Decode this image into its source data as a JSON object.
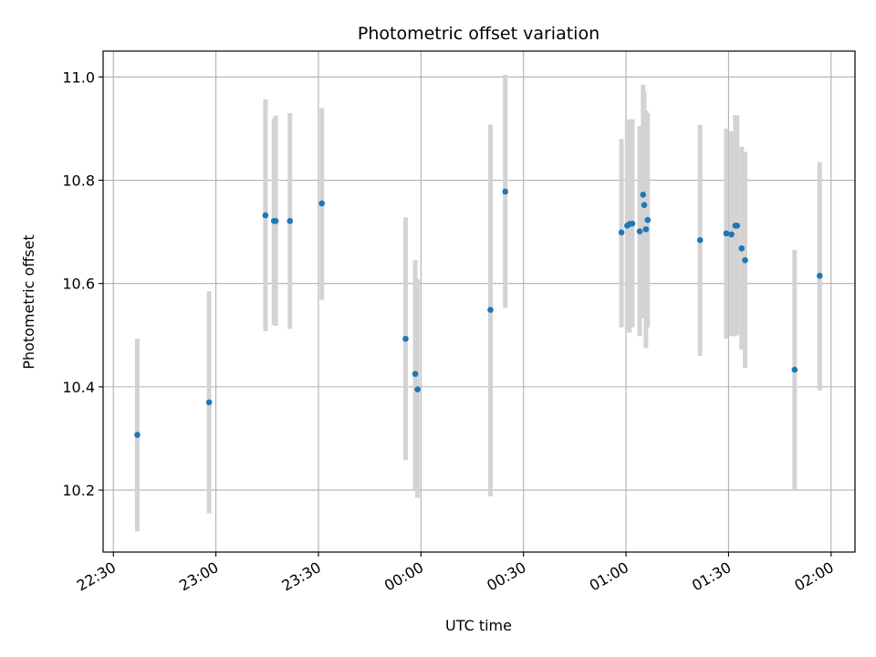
{
  "chart_data": {
    "type": "scatter",
    "title": "Photometric offset variation",
    "xlabel": "UTC time",
    "ylabel": "Photometric offset",
    "x_is_time": true,
    "xlim": [
      "22:27",
      "02:07"
    ],
    "ylim": [
      10.08,
      11.05
    ],
    "x_ticks": [
      "22:30",
      "23:00",
      "23:30",
      "00:00",
      "00:30",
      "01:00",
      "01:30",
      "02:00"
    ],
    "y_ticks": [
      10.2,
      10.4,
      10.6,
      10.8,
      11.0
    ],
    "y_tick_labels": [
      "10.2",
      "10.4",
      "10.6",
      "10.8",
      "11.0"
    ],
    "grid": true,
    "point_color": "#1f77b4",
    "errorbar_color": "#d3d3d3",
    "series": [
      {
        "points": [
          {
            "x": "22:37:00",
            "y": 10.307,
            "ylow": 10.12,
            "yhigh": 10.493
          },
          {
            "x": "22:58:00",
            "y": 10.37,
            "ylow": 10.155,
            "yhigh": 10.585
          },
          {
            "x": "23:14:30",
            "y": 10.732,
            "ylow": 10.508,
            "yhigh": 10.957
          },
          {
            "x": "23:17:00",
            "y": 10.721,
            "ylow": 10.52,
            "yhigh": 10.92
          },
          {
            "x": "23:17:30",
            "y": 10.721,
            "ylow": 10.518,
            "yhigh": 10.925
          },
          {
            "x": "23:21:40",
            "y": 10.721,
            "ylow": 10.512,
            "yhigh": 10.93
          },
          {
            "x": "23:31:00",
            "y": 10.755,
            "ylow": 10.568,
            "yhigh": 10.94
          },
          {
            "x": "23:55:30",
            "y": 10.493,
            "ylow": 10.258,
            "yhigh": 10.728
          },
          {
            "x": "23:58:20",
            "y": 10.425,
            "ylow": 10.2,
            "yhigh": 10.645
          },
          {
            "x": "23:59:00",
            "y": 10.395,
            "ylow": 10.185,
            "yhigh": 10.608
          },
          {
            "x": "00:20:20",
            "y": 10.549,
            "ylow": 10.188,
            "yhigh": 10.908
          },
          {
            "x": "00:24:40",
            "y": 10.778,
            "ylow": 10.553,
            "yhigh": 11.004
          },
          {
            "x": "00:58:40",
            "y": 10.699,
            "ylow": 10.515,
            "yhigh": 10.88
          },
          {
            "x": "01:00:20",
            "y": 10.712,
            "ylow": 10.51,
            "yhigh": 10.915
          },
          {
            "x": "01:01:00",
            "y": 10.715,
            "ylow": 10.505,
            "yhigh": 10.918
          },
          {
            "x": "01:01:50",
            "y": 10.716,
            "ylow": 10.515,
            "yhigh": 10.918
          },
          {
            "x": "01:04:00",
            "y": 10.701,
            "ylow": 10.498,
            "yhigh": 10.905
          },
          {
            "x": "01:05:00",
            "y": 10.772,
            "ylow": 10.562,
            "yhigh": 10.985
          },
          {
            "x": "01:05:20",
            "y": 10.752,
            "ylow": 10.532,
            "yhigh": 10.972
          },
          {
            "x": "01:05:50",
            "y": 10.705,
            "ylow": 10.475,
            "yhigh": 10.935
          },
          {
            "x": "01:06:20",
            "y": 10.723,
            "ylow": 10.515,
            "yhigh": 10.93
          },
          {
            "x": "01:21:40",
            "y": 10.684,
            "ylow": 10.46,
            "yhigh": 10.907
          },
          {
            "x": "01:29:20",
            "y": 10.697,
            "ylow": 10.493,
            "yhigh": 10.9
          },
          {
            "x": "01:30:50",
            "y": 10.695,
            "ylow": 10.498,
            "yhigh": 10.895
          },
          {
            "x": "01:32:00",
            "y": 10.712,
            "ylow": 10.498,
            "yhigh": 10.926
          },
          {
            "x": "01:32:30",
            "y": 10.712,
            "ylow": 10.5,
            "yhigh": 10.925
          },
          {
            "x": "01:33:50",
            "y": 10.668,
            "ylow": 10.472,
            "yhigh": 10.865
          },
          {
            "x": "01:34:50",
            "y": 10.645,
            "ylow": 10.437,
            "yhigh": 10.855
          },
          {
            "x": "01:49:20",
            "y": 10.433,
            "ylow": 10.2,
            "yhigh": 10.665
          },
          {
            "x": "01:56:40",
            "y": 10.615,
            "ylow": 10.393,
            "yhigh": 10.835
          }
        ]
      }
    ]
  }
}
